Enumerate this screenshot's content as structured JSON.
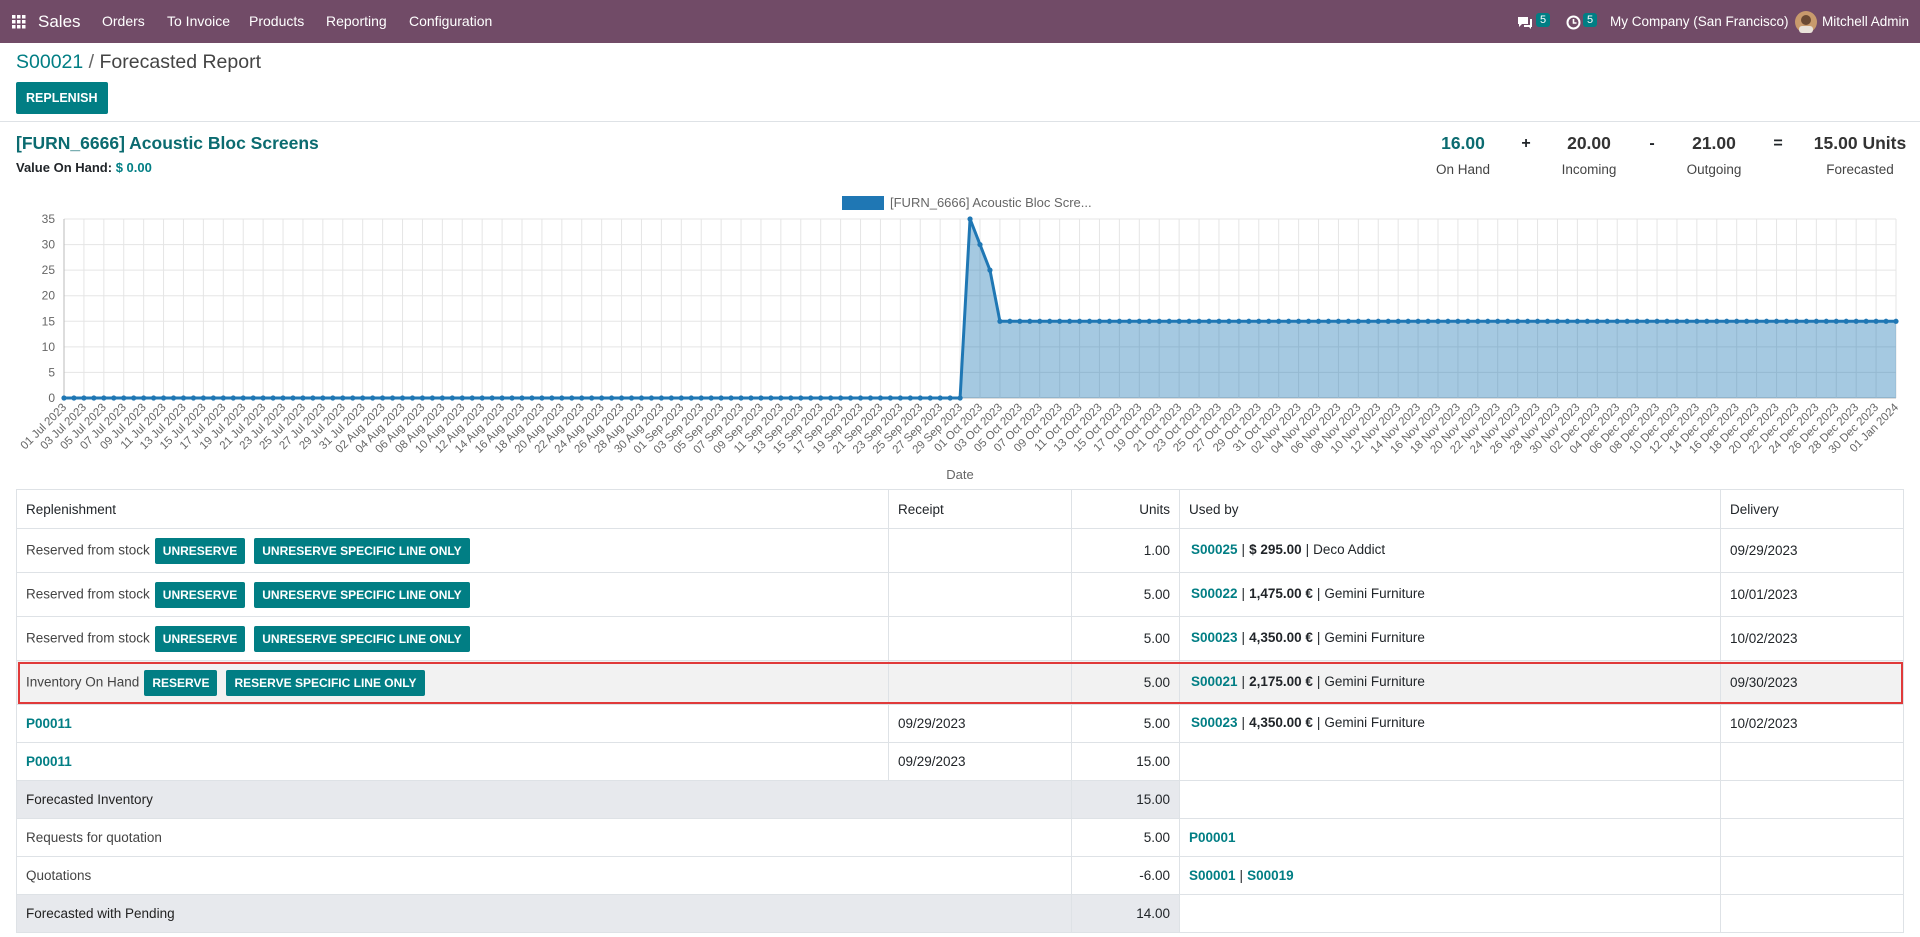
{
  "nav": {
    "app": "Sales",
    "menu": [
      "Orders",
      "To Invoice",
      "Products",
      "Reporting",
      "Configuration"
    ],
    "messages": "5",
    "activities": "5",
    "company": "My Company (San Francisco)",
    "user": "Mitchell Admin"
  },
  "breadcrumb": {
    "parent": "S00021",
    "separator": "/",
    "current": "Forecasted Report"
  },
  "replenish": "REPLENISH",
  "product": {
    "name": "[FURN_6666] Acoustic Bloc Screens",
    "value_label": "Value On Hand:",
    "value": "$ 0.00"
  },
  "summary": {
    "items": [
      {
        "value": "16.00",
        "label": "On Hand"
      },
      {
        "value": "20.00",
        "label": "Incoming"
      },
      {
        "value": "21.00",
        "label": "Outgoing"
      },
      {
        "value": "15.00 Units",
        "label": "Forecasted"
      }
    ],
    "operators": [
      "+",
      "-",
      "="
    ]
  },
  "chart_data": {
    "type": "area",
    "legend": "[FURN_6666] Acoustic Bloc Scre...",
    "x_label": "Date",
    "color": "#1f77b4",
    "grid": true,
    "categories": [
      "01 Jul 2023",
      null,
      "03 Jul 2023",
      null,
      "05 Jul 2023",
      null,
      "07 Jul 2023",
      null,
      "09 Jul 2023",
      null,
      "11 Jul 2023",
      null,
      "13 Jul 2023",
      null,
      "15 Jul 2023",
      null,
      "17 Jul 2023",
      null,
      "19 Jul 2023",
      null,
      "21 Jul 2023",
      null,
      "23 Jul 2023",
      null,
      "25 Jul 2023",
      null,
      "27 Jul 2023",
      null,
      "29 Jul 2023",
      null,
      "31 Jul 2023",
      null,
      "02 Aug 2023",
      null,
      "04 Aug 2023",
      null,
      "06 Aug 2023",
      null,
      "08 Aug 2023",
      null,
      "10 Aug 2023",
      null,
      "12 Aug 2023",
      null,
      "14 Aug 2023",
      null,
      "16 Aug 2023",
      null,
      "18 Aug 2023",
      null,
      "20 Aug 2023",
      null,
      "22 Aug 2023",
      null,
      "24 Aug 2023",
      null,
      "26 Aug 2023",
      null,
      "28 Aug 2023",
      null,
      "30 Aug 2023",
      null,
      "01 Sep 2023",
      null,
      "03 Sep 2023",
      null,
      "05 Sep 2023",
      null,
      "07 Sep 2023",
      null,
      "09 Sep 2023",
      null,
      "11 Sep 2023",
      null,
      "13 Sep 2023",
      null,
      "15 Sep 2023",
      null,
      "17 Sep 2023",
      null,
      "19 Sep 2023",
      null,
      "21 Sep 2023",
      null,
      "23 Sep 2023",
      null,
      "25 Sep 2023",
      null,
      "27 Sep 2023",
      null,
      "29 Sep 2023",
      null,
      "01 Oct 2023",
      null,
      "03 Oct 2023",
      null,
      "05 Oct 2023",
      null,
      "07 Oct 2023",
      null,
      "09 Oct 2023",
      null,
      "11 Oct 2023",
      null,
      "13 Oct 2023",
      null,
      "15 Oct 2023",
      null,
      "17 Oct 2023",
      null,
      "19 Oct 2023",
      null,
      "21 Oct 2023",
      null,
      "23 Oct 2023",
      null,
      "25 Oct 2023",
      null,
      "27 Oct 2023",
      null,
      "29 Oct 2023",
      null,
      "31 Oct 2023",
      null,
      "02 Nov 2023",
      null,
      "04 Nov 2023",
      null,
      "06 Nov 2023",
      null,
      "08 Nov 2023",
      null,
      "10 Nov 2023",
      null,
      "12 Nov 2023",
      null,
      "14 Nov 2023",
      null,
      "16 Nov 2023",
      null,
      "18 Nov 2023",
      null,
      "20 Nov 2023",
      null,
      "22 Nov 2023",
      null,
      "24 Nov 2023",
      null,
      "26 Nov 2023",
      null,
      "28 Nov 2023",
      null,
      "30 Nov 2023",
      null,
      "02 Dec 2023",
      null,
      "04 Dec 2023",
      null,
      "06 Dec 2023",
      null,
      "08 Dec 2023",
      null,
      "10 Dec 2023",
      null,
      "12 Dec 2023",
      null,
      "14 Dec 2023",
      null,
      "16 Dec 2023",
      null,
      "18 Dec 2023",
      null,
      "20 Dec 2023",
      null,
      "22 Dec 2023",
      null,
      "24 Dec 2023",
      null,
      "26 Dec 2023",
      null,
      "28 Dec 2023",
      null,
      "30 Dec 2023",
      null,
      "01 Jan 2024"
    ],
    "values": [
      0,
      0,
      0,
      0,
      0,
      0,
      0,
      0,
      0,
      0,
      0,
      0,
      0,
      0,
      0,
      0,
      0,
      0,
      0,
      0,
      0,
      0,
      0,
      0,
      0,
      0,
      0,
      0,
      0,
      0,
      0,
      0,
      0,
      0,
      0,
      0,
      0,
      0,
      0,
      0,
      0,
      0,
      0,
      0,
      0,
      0,
      0,
      0,
      0,
      0,
      0,
      0,
      0,
      0,
      0,
      0,
      0,
      0,
      0,
      0,
      0,
      0,
      0,
      0,
      0,
      0,
      0,
      0,
      0,
      0,
      0,
      0,
      0,
      0,
      0,
      0,
      0,
      0,
      0,
      0,
      0,
      0,
      0,
      0,
      0,
      0,
      0,
      0,
      0,
      0,
      0,
      35,
      30,
      25,
      15,
      15,
      15,
      15,
      15,
      15,
      15,
      15,
      15,
      15,
      15,
      15,
      15,
      15,
      15,
      15,
      15,
      15,
      15,
      15,
      15,
      15,
      15,
      15,
      15,
      15,
      15,
      15,
      15,
      15,
      15,
      15,
      15,
      15,
      15,
      15,
      15,
      15,
      15,
      15,
      15,
      15,
      15,
      15,
      15,
      15,
      15,
      15,
      15,
      15,
      15,
      15,
      15,
      15,
      15,
      15,
      15,
      15,
      15,
      15,
      15,
      15,
      15,
      15,
      15,
      15,
      15,
      15,
      15,
      15,
      15,
      15,
      15,
      15,
      15,
      15,
      15,
      15,
      15,
      15,
      15,
      15,
      15,
      15,
      15,
      15,
      15,
      15,
      15,
      15,
      15
    ],
    "ylim": [
      0,
      35
    ],
    "yticks": [
      0,
      5,
      10,
      15,
      20,
      25,
      30,
      35
    ]
  },
  "table": {
    "headers": [
      "Replenishment",
      "Receipt",
      "Units",
      "Used by",
      "Delivery"
    ],
    "sep": "|",
    "rows": [
      {
        "label": "Reserved from stock",
        "buttons": [
          "UNRESERVE",
          "UNRESERVE SPECIFIC LINE ONLY"
        ],
        "units": "1.00",
        "used_by": {
          "ref": "S00025",
          "amount": "$ 295.00",
          "partner": "Deco Addict"
        },
        "delivery": "09/29/2023"
      },
      {
        "label": "Reserved from stock",
        "buttons": [
          "UNRESERVE",
          "UNRESERVE SPECIFIC LINE ONLY"
        ],
        "units": "5.00",
        "used_by": {
          "ref": "S00022",
          "amount": "1,475.00 €",
          "partner": "Gemini Furniture"
        },
        "delivery": "10/01/2023"
      },
      {
        "label": "Reserved from stock",
        "buttons": [
          "UNRESERVE",
          "UNRESERVE SPECIFIC LINE ONLY"
        ],
        "units": "5.00",
        "used_by": {
          "ref": "S00023",
          "amount": "4,350.00 €",
          "partner": "Gemini Furniture"
        },
        "delivery": "10/02/2023"
      },
      {
        "label": "Inventory On Hand",
        "buttons": [
          "RESERVE",
          "RESERVE SPECIFIC LINE ONLY"
        ],
        "units": "5.00",
        "used_by": {
          "ref": "S00021",
          "amount": "2,175.00 €",
          "partner": "Gemini Furniture"
        },
        "delivery": "09/30/2023",
        "highlight": true
      },
      {
        "link": "P00011",
        "receipt": "09/29/2023",
        "units": "5.00",
        "used_by": {
          "ref": "S00023",
          "amount": "4,350.00 €",
          "partner": "Gemini Furniture"
        },
        "delivery": "10/02/2023"
      },
      {
        "link": "P00011",
        "receipt": "09/29/2023",
        "units": "15.00"
      }
    ],
    "totals": [
      {
        "label": "Forecasted Inventory",
        "units": "15.00",
        "style": "total"
      },
      {
        "label": "Requests for quotation",
        "units": "5.00",
        "refs": [
          "P00001"
        ]
      },
      {
        "label": "Quotations",
        "units": "-6.00",
        "refs": [
          "S00001",
          "S00019"
        ]
      },
      {
        "label": "Forecasted with Pending",
        "units": "14.00",
        "style": "total"
      }
    ]
  }
}
